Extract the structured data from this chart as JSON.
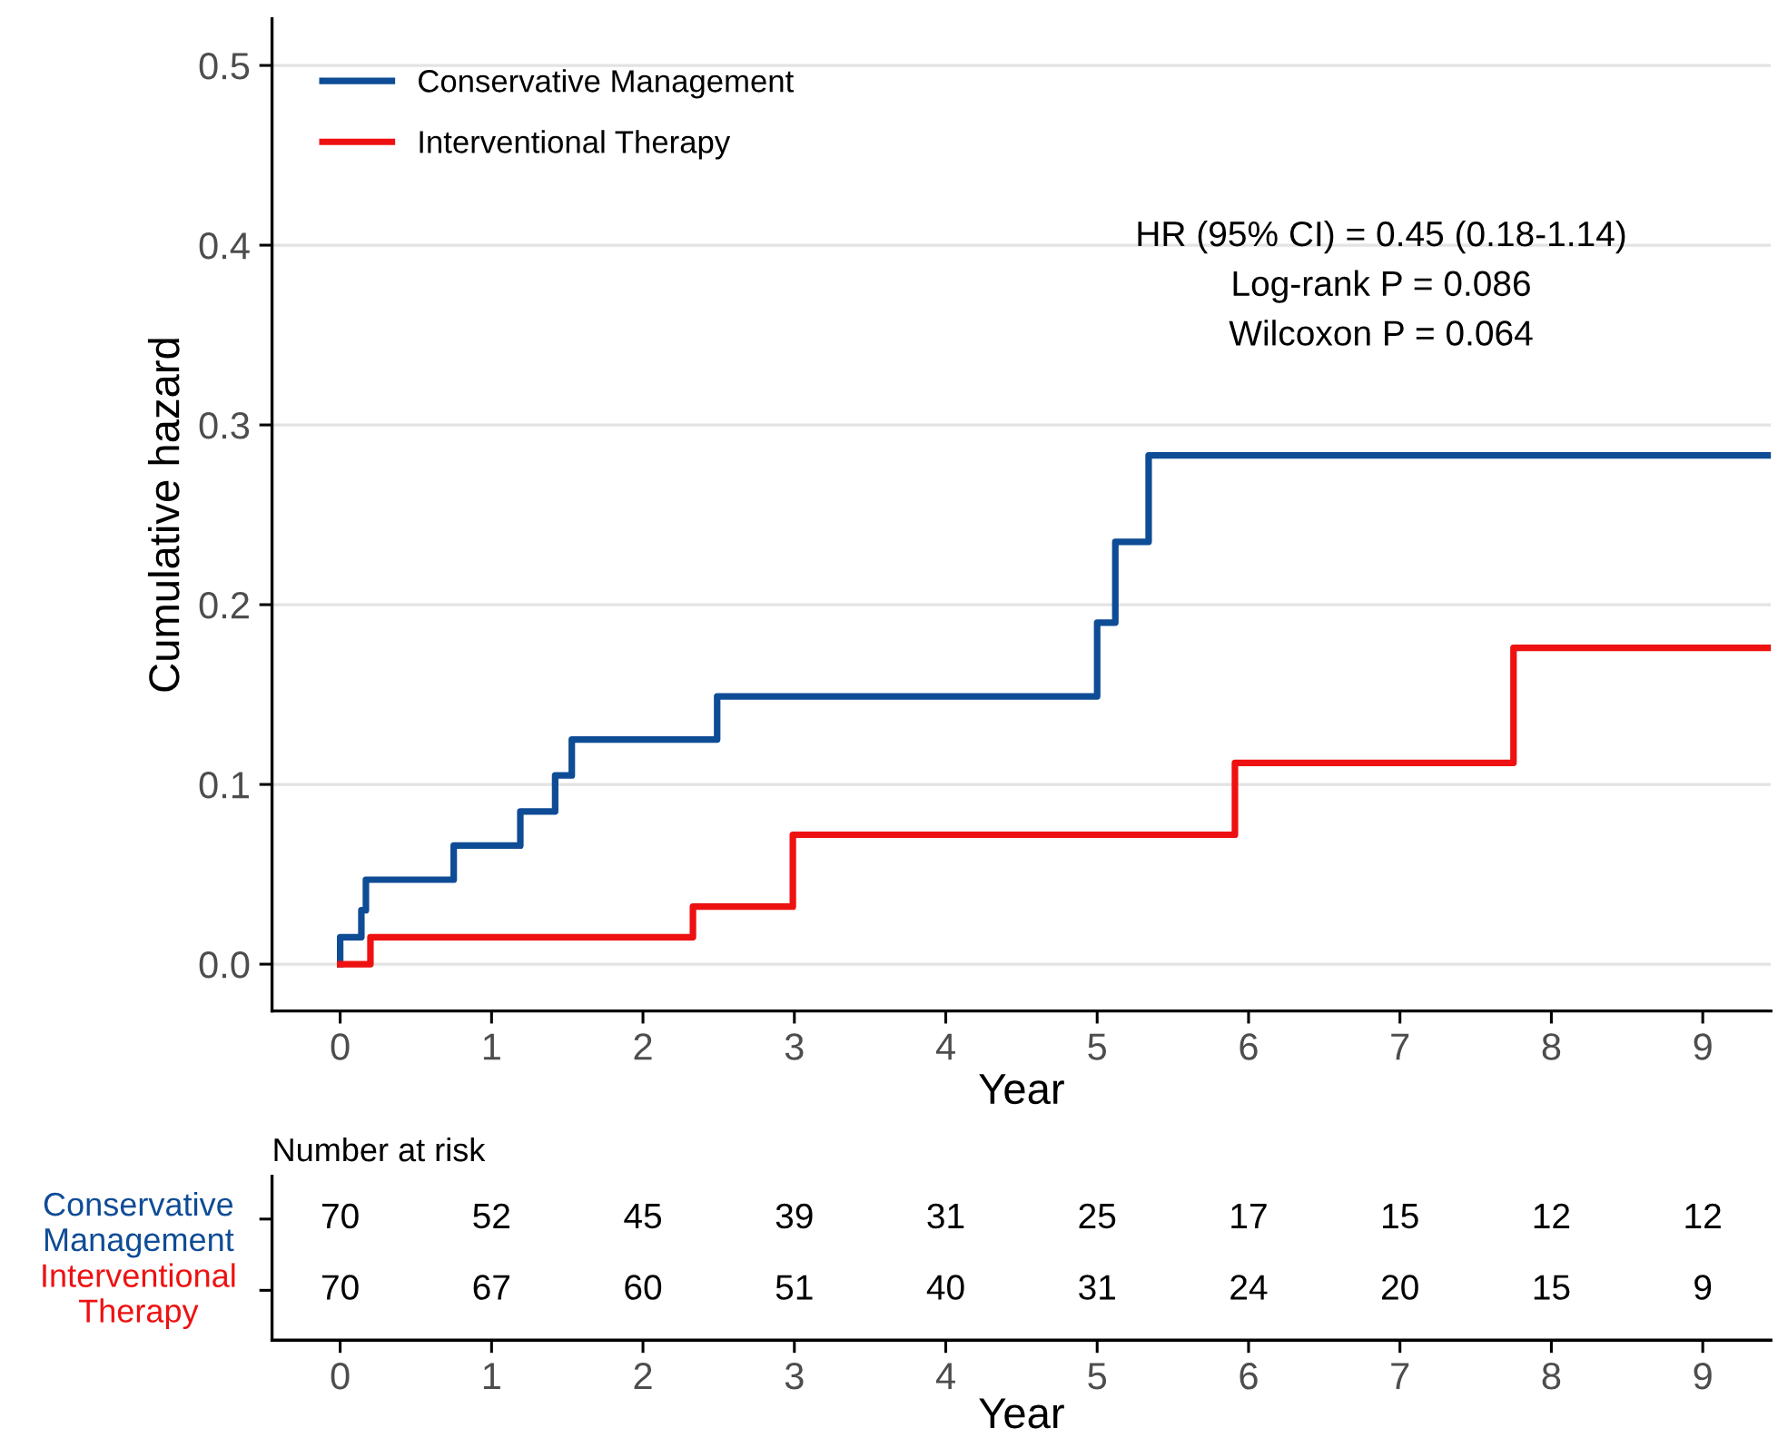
{
  "chart_data": [
    {
      "type": "step",
      "xlabel": "Year",
      "ylabel": "Cumulative hazard",
      "xlim": [
        -0.45,
        9.45
      ],
      "xticks": [
        0,
        1,
        2,
        3,
        4,
        5,
        6,
        7,
        8,
        9
      ],
      "ylim": [
        -0.026,
        0.526
      ],
      "yticks": [
        {
          "value": 0,
          "label": "0.0"
        },
        0.1,
        0.2,
        0.3,
        0.4,
        0.5
      ],
      "grid": "y",
      "legend": "top left",
      "marker": "none",
      "line_style": "solid",
      "series": [
        {
          "name": "Conservative Management",
          "color": "#0f4c96",
          "x": [
            0,
            0,
            0.14,
            0.17,
            0.75,
            1.19,
            1.42,
            1.53,
            2.49,
            5.0,
            5.12,
            5.34,
            9.45
          ],
          "values": [
            0,
            0.015,
            0.03,
            0.047,
            0.066,
            0.085,
            0.105,
            0.125,
            0.149,
            0.19,
            0.235,
            0.283,
            0.283
          ]
        },
        {
          "name": "Interventional Therapy",
          "color": "#ee1111",
          "x": [
            0,
            0.2,
            2.33,
            2.99,
            5.91,
            7.75,
            9.45
          ],
          "values": [
            0,
            0.015,
            0.032,
            0.072,
            0.112,
            0.176,
            0.176
          ]
        }
      ],
      "annotations": [
        "HR (95% CI) = 0.45 (0.18-1.14)",
        "Log-rank P = 0.086",
        "Wilcoxon P = 0.064"
      ]
    },
    {
      "type": "heatmap",
      "title": "Number at risk",
      "xlabel": "Year",
      "data_labels": true,
      "categories": [
        "0",
        "1",
        "2",
        "3",
        "4",
        "5",
        "6",
        "7",
        "8",
        "9"
      ],
      "y_categories": [
        "Conservative Management",
        "Interventional Therapy"
      ],
      "colors": [
        "#0f4c96",
        "#ee1111"
      ],
      "cells": [
        [
          70,
          52,
          45,
          39,
          31,
          25,
          17,
          15,
          12,
          12
        ],
        [
          70,
          67,
          60,
          51,
          40,
          31,
          24,
          20,
          15,
          9
        ]
      ]
    }
  ]
}
